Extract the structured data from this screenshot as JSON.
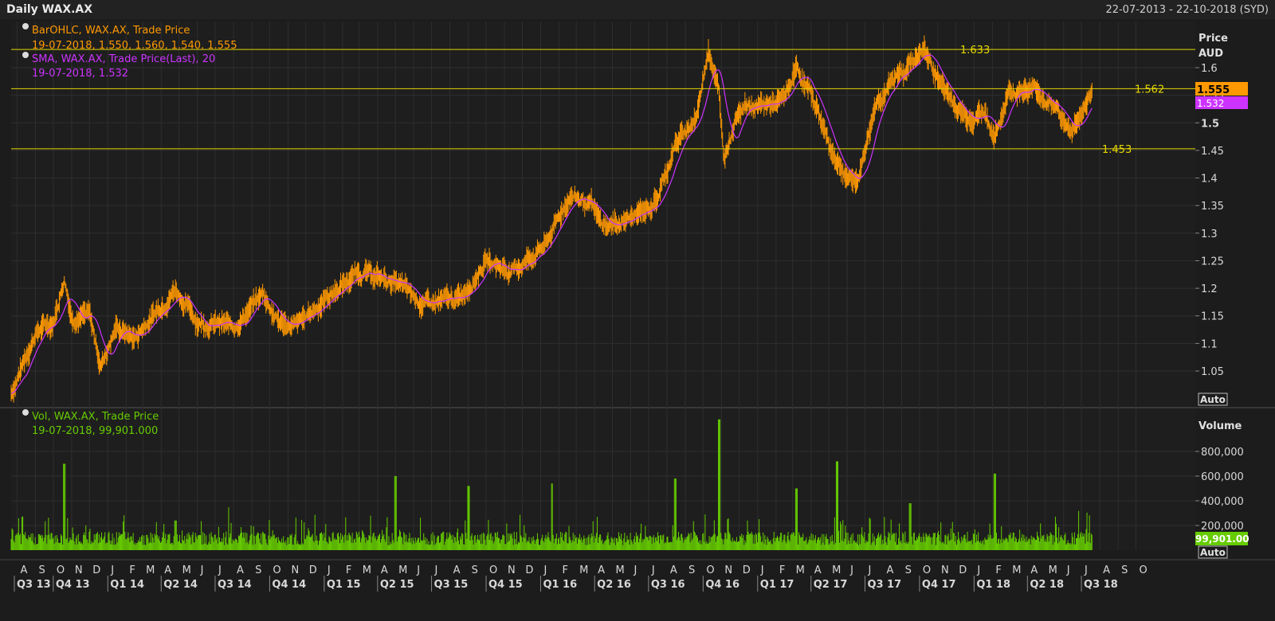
{
  "title": "Daily WAX.AX",
  "date_range": "22-07-2013 - 22-10-2018 (SYD)",
  "colors": {
    "price": "#ff9900",
    "sma": "#cc33ff",
    "volume": "#66cc00",
    "hline": "#e6d800",
    "grid": "#2e2e2e",
    "background": "#1e1e1e"
  },
  "price_legend": {
    "series_label": "BarOHLC, WAX.AX, Trade Price",
    "series_values": "19-07-2018, 1.550, 1.560, 1.540, 1.555",
    "sma_label": "SMA, WAX.AX, Trade Price(Last),  20",
    "sma_values": "19-07-2018, 1.532"
  },
  "volume_legend": {
    "series_label": "Vol, WAX.AX, Trade Price",
    "series_values": "19-07-2018, 99,901.000"
  },
  "price_axis": {
    "title": "Price",
    "unit": "AUD",
    "ticks": [
      "1.6",
      "1.55",
      "1.5",
      "1.45",
      "1.4",
      "1.35",
      "1.3",
      "1.25",
      "1.2",
      "1.15",
      "1.1",
      "1.05"
    ],
    "last_price": "1.555",
    "last_sma": "1.532",
    "auto_button": "Auto"
  },
  "volume_axis": {
    "title": "Volume",
    "ticks": [
      "800,000",
      "600,000",
      "400,000",
      "200,000"
    ],
    "last_volume": "99,901.00",
    "auto_button": "Auto"
  },
  "horizontal_lines": [
    {
      "value": 1.633,
      "label": "1.633"
    },
    {
      "value": 1.562,
      "label": "1.562"
    },
    {
      "value": 1.453,
      "label": "1.453"
    }
  ],
  "month_labels": [
    "A",
    "S",
    "O",
    "N",
    "D",
    "J",
    "F",
    "M",
    "A",
    "M",
    "J",
    "J",
    "A",
    "S",
    "O",
    "N",
    "D",
    "J",
    "F",
    "M",
    "A",
    "M",
    "J",
    "J",
    "A",
    "S",
    "O",
    "N",
    "D",
    "J",
    "F",
    "M",
    "A",
    "M",
    "J",
    "J",
    "A",
    "S",
    "O",
    "N",
    "D",
    "J",
    "F",
    "M",
    "A",
    "M",
    "J",
    "J",
    "A",
    "S",
    "O",
    "N",
    "D",
    "J",
    "F",
    "M",
    "A",
    "M",
    "J",
    "J",
    "A",
    "S",
    "O"
  ],
  "quarter_labels": [
    "Q3 13",
    "Q4 13",
    "Q1 14",
    "Q2 14",
    "Q3 14",
    "Q4 14",
    "Q1 15",
    "Q2 15",
    "Q3 15",
    "Q4 15",
    "Q1 16",
    "Q2 16",
    "Q3 16",
    "Q4 16",
    "Q1 17",
    "Q2 17",
    "Q3 17",
    "Q4 17",
    "Q1 18",
    "Q2 18",
    "Q3 18"
  ],
  "chart_data": [
    {
      "type": "line",
      "title": "Daily WAX.AX",
      "ylabel": "Price AUD",
      "ylim": [
        1.0,
        1.66
      ],
      "x": [
        "2013-07-22",
        "2013-09-01",
        "2013-10-01",
        "2013-10-20",
        "2013-11-01",
        "2013-12-01",
        "2013-12-20",
        "2014-01-15",
        "2014-02-15",
        "2014-04-25",
        "2014-06-01",
        "2014-08-01",
        "2014-09-20",
        "2014-10-15",
        "2014-11-15",
        "2015-01-01",
        "2015-03-01",
        "2015-05-01",
        "2015-06-20",
        "2015-08-15",
        "2015-10-01",
        "2015-11-15",
        "2016-01-10",
        "2016-02-20",
        "2016-03-25",
        "2016-04-15",
        "2016-06-10",
        "2016-07-15",
        "2016-08-15",
        "2016-09-20",
        "2016-10-10",
        "2016-10-28",
        "2016-11-05",
        "2016-12-01",
        "2017-01-10",
        "2017-02-15",
        "2017-03-08",
        "2017-04-10",
        "2017-05-05",
        "2017-06-08",
        "2017-06-20",
        "2017-07-20",
        "2017-08-15",
        "2017-09-15",
        "2017-10-10",
        "2017-11-01",
        "2017-12-01",
        "2017-12-20",
        "2018-01-20",
        "2018-02-05",
        "2018-03-01",
        "2018-04-15",
        "2018-05-25",
        "2018-06-12",
        "2018-07-19"
      ],
      "y": [
        1.01,
        1.12,
        1.14,
        1.22,
        1.15,
        1.15,
        1.06,
        1.13,
        1.11,
        1.2,
        1.14,
        1.13,
        1.19,
        1.14,
        1.13,
        1.18,
        1.23,
        1.21,
        1.17,
        1.18,
        1.25,
        1.23,
        1.28,
        1.37,
        1.35,
        1.31,
        1.33,
        1.36,
        1.46,
        1.51,
        1.64,
        1.55,
        1.44,
        1.53,
        1.53,
        1.54,
        1.6,
        1.53,
        1.45,
        1.39,
        1.4,
        1.54,
        1.57,
        1.61,
        1.63,
        1.58,
        1.53,
        1.51,
        1.52,
        1.47,
        1.56,
        1.56,
        1.52,
        1.48,
        1.555
      ],
      "series": [
        {
          "name": "BarOHLC, WAX.AX, Trade Price",
          "color": "#ff9900"
        },
        {
          "name": "SMA, WAX.AX, Trade Price(Last),  20",
          "color": "#cc33ff"
        }
      ],
      "reference_lines": [
        1.633,
        1.562,
        1.453
      ],
      "grid": true
    },
    {
      "type": "bar",
      "title": "",
      "ylabel": "Volume",
      "ylim": [
        0,
        1050000
      ],
      "x": [
        "2013-07-22",
        "2013-10-20",
        "2014-04-25",
        "2015-05-01",
        "2015-09-01",
        "2016-01-20",
        "2016-08-15",
        "2016-10-28",
        "2017-03-08",
        "2017-05-15",
        "2017-09-15",
        "2018-02-05",
        "2018-07-19"
      ],
      "values": [
        90000,
        700000,
        240000,
        600000,
        520000,
        540000,
        580000,
        1060000,
        500000,
        720000,
        380000,
        620000,
        99901
      ],
      "series": [
        {
          "name": "Vol, WAX.AX, Trade Price",
          "color": "#66cc00"
        }
      ],
      "grid": true
    }
  ]
}
